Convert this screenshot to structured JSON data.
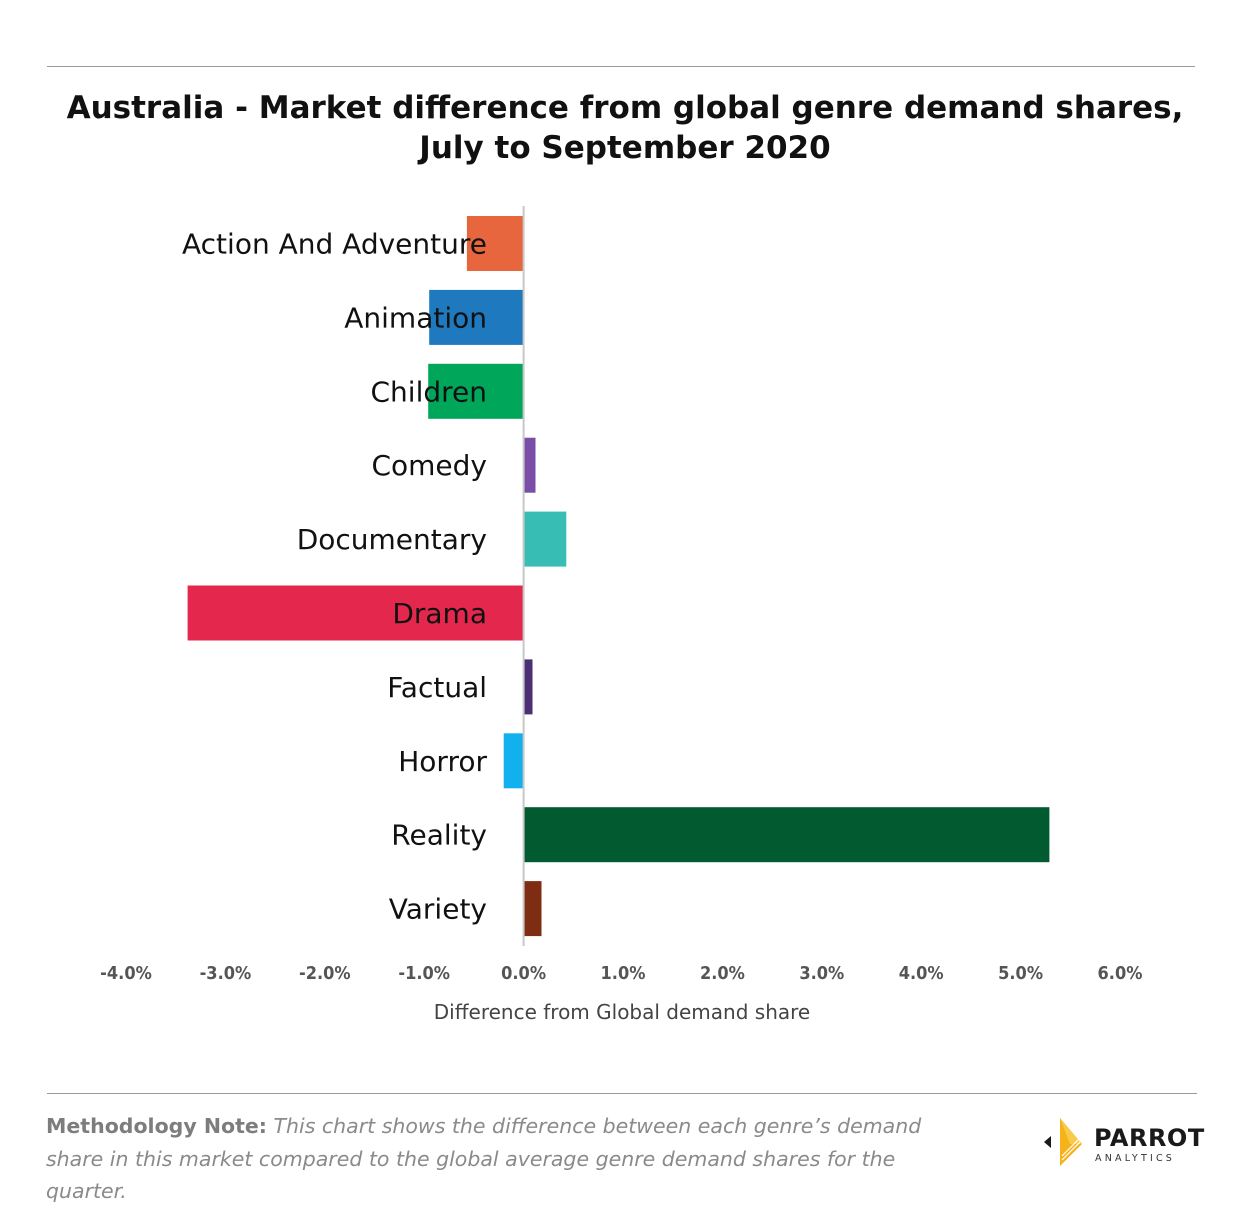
{
  "chart_data": {
    "type": "bar",
    "orientation": "horizontal",
    "title": "Australia - Market difference from global genre demand shares, July to September 2020",
    "xlabel": "Difference from Global demand share",
    "ylabel": "",
    "xlim": [
      -4.0,
      6.0
    ],
    "xticks": [
      "-4.0%",
      "-3.0%",
      "-2.0%",
      "-1.0%",
      "0.0%",
      "1.0%",
      "2.0%",
      "3.0%",
      "4.0%",
      "5.0%",
      "6.0%"
    ],
    "grid": false,
    "legend": "none",
    "categories": [
      "Action And Adventure",
      "Animation",
      "Children",
      "Comedy",
      "Documentary",
      "Drama",
      "Factual",
      "Horror",
      "Reality",
      "Variety"
    ],
    "values": [
      -0.57,
      -0.95,
      -0.96,
      0.12,
      0.43,
      -3.38,
      0.09,
      -0.2,
      5.29,
      0.18
    ],
    "unit": "%",
    "colors": [
      "#e8663d",
      "#1f79bf",
      "#00a65a",
      "#7a4ea8",
      "#37bdb4",
      "#e4274d",
      "#4b2e73",
      "#12b0ec",
      "#025a30",
      "#7e2c12"
    ]
  },
  "note": {
    "label": "Methodology Note:",
    "text": "This chart shows the difference between each genre’s demand share in this market compared to the global average genre demand shares for the quarter."
  },
  "logo": {
    "name": "PARROT",
    "sub": "ANALYTICS"
  }
}
